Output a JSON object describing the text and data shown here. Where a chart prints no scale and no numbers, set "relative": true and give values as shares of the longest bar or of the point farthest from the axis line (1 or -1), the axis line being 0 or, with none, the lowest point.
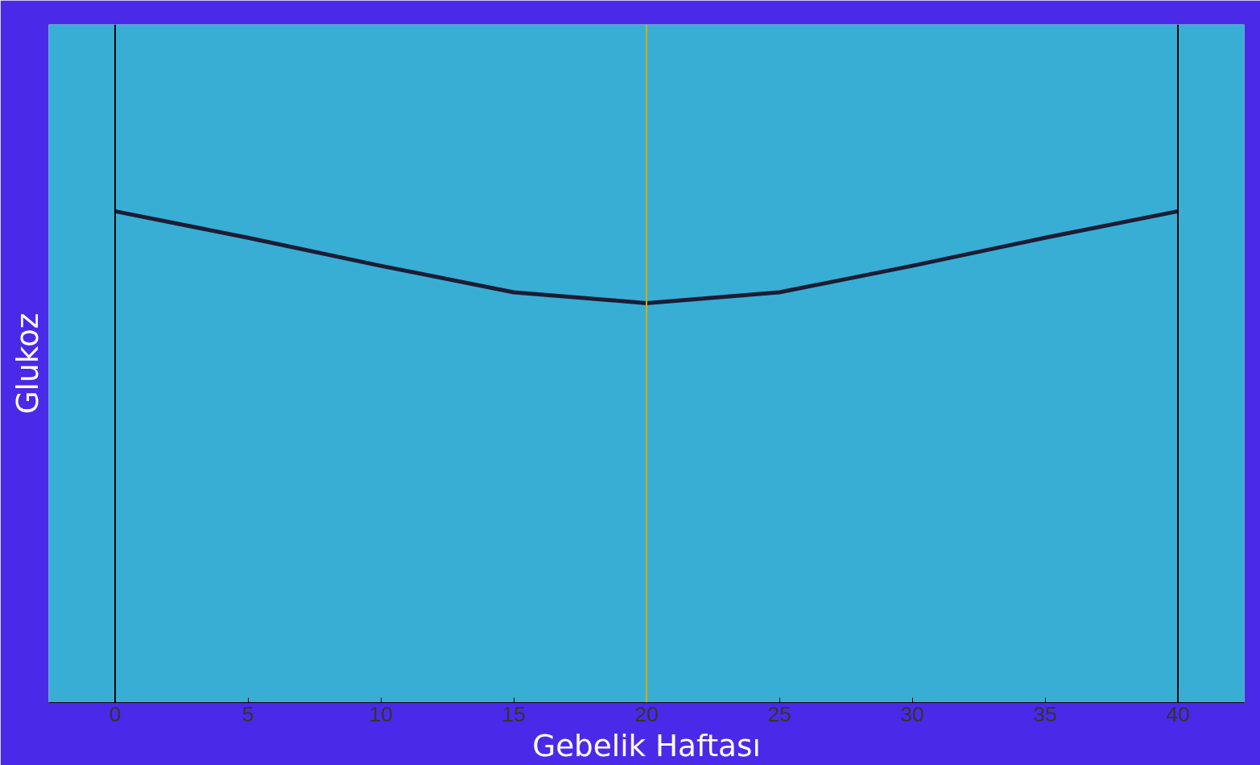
{
  "chart_data": {
    "type": "line",
    "relative": true,
    "xlabel": "Gebelik Haftası",
    "ylabel": "Glukoz",
    "x": [
      0,
      5,
      10,
      15,
      20,
      25,
      30,
      35,
      40
    ],
    "series": [
      {
        "color": "#1c1c34",
        "values": [
          1,
          0.946,
          0.889,
          0.835,
          0.813,
          0.835,
          0.889,
          0.946,
          1
        ]
      }
    ],
    "xlim": [
      -2.5,
      42.5
    ],
    "xticks": [
      0,
      5,
      10,
      15,
      20,
      25,
      30,
      35,
      40
    ],
    "ref_lines": [
      {
        "axis": "x",
        "value": 0,
        "color": "#000000"
      },
      {
        "axis": "x",
        "value": 20,
        "color": "#b8b040"
      },
      {
        "axis": "x",
        "value": 40,
        "color": "#000000"
      }
    ],
    "grid": false,
    "marker": "none",
    "line_style": "solid",
    "tick_labels": "x"
  }
}
